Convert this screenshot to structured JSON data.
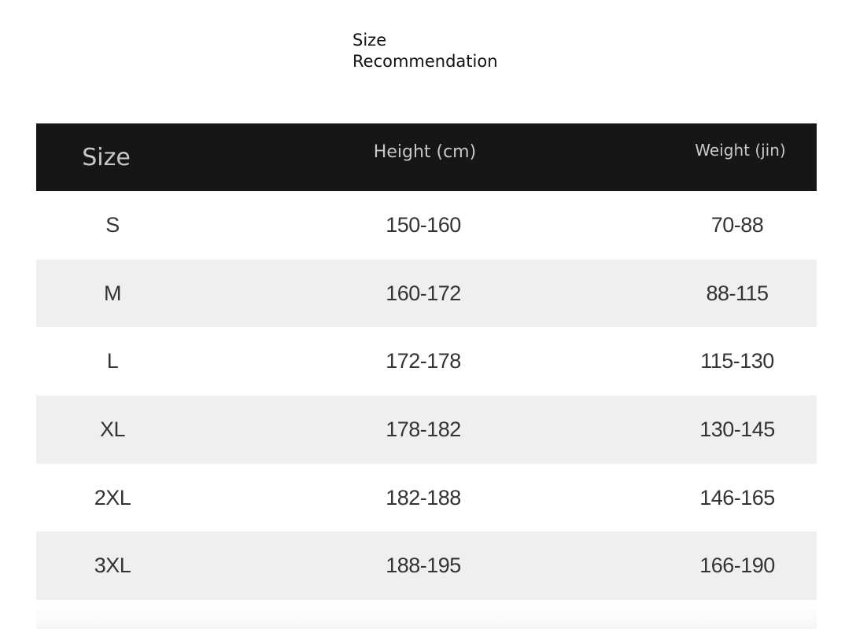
{
  "header": {
    "title": "Size Recommendation"
  },
  "table": {
    "columns": [
      "Size",
      "Height (cm)",
      "Weight (jin)"
    ],
    "rows": [
      [
        "S",
        "150-160",
        "70-88"
      ],
      [
        "M",
        "160-172",
        "88-115"
      ],
      [
        "L",
        "172-178",
        "115-130"
      ],
      [
        "XL",
        "178-182",
        "130-145"
      ],
      [
        "2XL",
        "182-188",
        "146-165"
      ],
      [
        "3XL",
        "188-195",
        "166-190"
      ]
    ]
  }
}
